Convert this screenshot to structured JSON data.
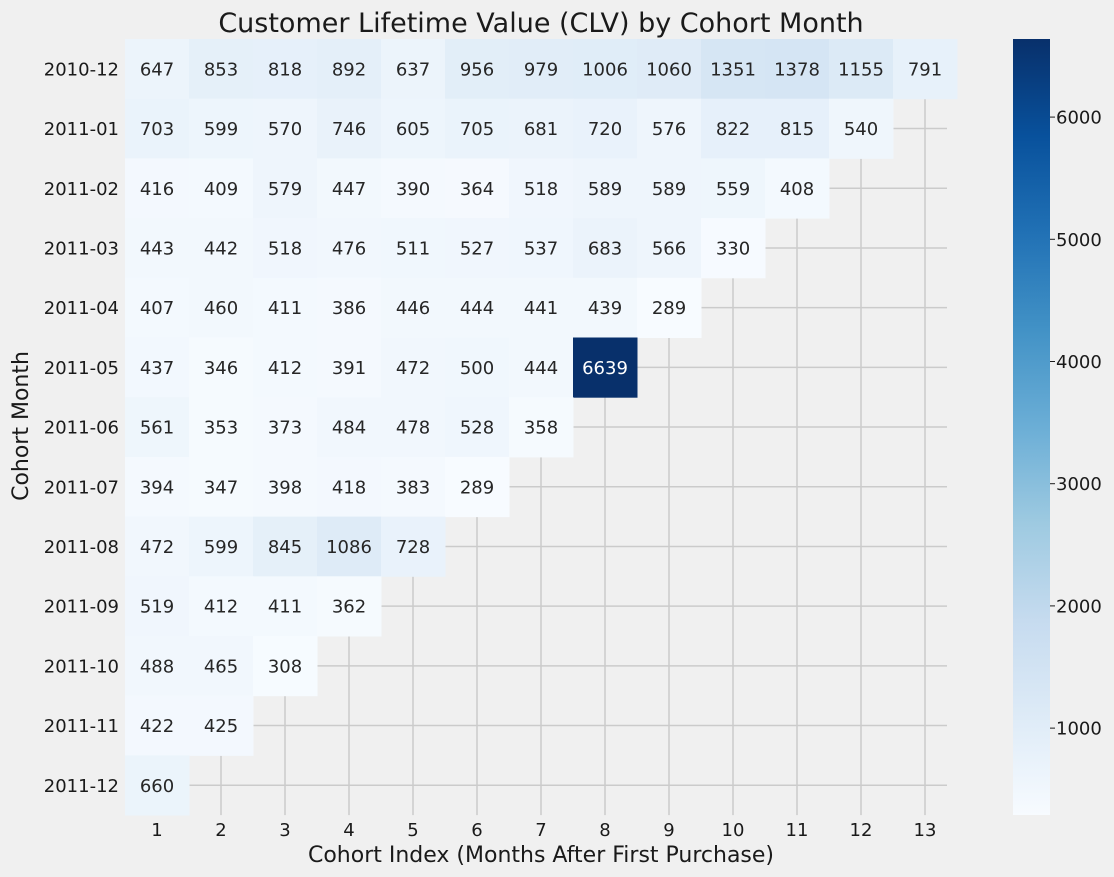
{
  "chart_data": {
    "type": "heatmap",
    "title": "Customer Lifetime Value (CLV) by Cohort Month",
    "xlabel": "Cohort Index (Months After First Purchase)",
    "ylabel": "Cohort Month",
    "x_categories": [
      "1",
      "2",
      "3",
      "4",
      "5",
      "6",
      "7",
      "8",
      "9",
      "10",
      "11",
      "12",
      "13"
    ],
    "y_categories": [
      "2010-12",
      "2011-01",
      "2011-02",
      "2011-03",
      "2011-04",
      "2011-05",
      "2011-06",
      "2011-07",
      "2011-08",
      "2011-09",
      "2011-10",
      "2011-11",
      "2011-12"
    ],
    "values": [
      [
        647,
        853,
        818,
        892,
        637,
        956,
        979,
        1006,
        1060,
        1351,
        1378,
        1155,
        791
      ],
      [
        703,
        599,
        570,
        746,
        605,
        705,
        681,
        720,
        576,
        822,
        815,
        540,
        null
      ],
      [
        416,
        409,
        579,
        447,
        390,
        364,
        518,
        589,
        589,
        559,
        408,
        null,
        null
      ],
      [
        443,
        442,
        518,
        476,
        511,
        527,
        537,
        683,
        566,
        330,
        null,
        null,
        null
      ],
      [
        407,
        460,
        411,
        386,
        446,
        444,
        441,
        439,
        289,
        null,
        null,
        null,
        null
      ],
      [
        437,
        346,
        412,
        391,
        472,
        500,
        444,
        6639,
        null,
        null,
        null,
        null,
        null
      ],
      [
        561,
        353,
        373,
        484,
        478,
        528,
        358,
        null,
        null,
        null,
        null,
        null,
        null
      ],
      [
        394,
        347,
        398,
        418,
        383,
        289,
        null,
        null,
        null,
        null,
        null,
        null,
        null
      ],
      [
        472,
        599,
        845,
        1086,
        728,
        null,
        null,
        null,
        null,
        null,
        null,
        null,
        null
      ],
      [
        519,
        412,
        411,
        362,
        null,
        null,
        null,
        null,
        null,
        null,
        null,
        null,
        null
      ],
      [
        488,
        465,
        308,
        null,
        null,
        null,
        null,
        null,
        null,
        null,
        null,
        null,
        null
      ],
      [
        422,
        425,
        null,
        null,
        null,
        null,
        null,
        null,
        null,
        null,
        null,
        null,
        null
      ],
      [
        660,
        null,
        null,
        null,
        null,
        null,
        null,
        null,
        null,
        null,
        null,
        null,
        null
      ]
    ],
    "colormap": "Blues",
    "value_range": [
      289,
      6639
    ],
    "colorbar_ticks": [
      1000,
      2000,
      3000,
      4000,
      5000,
      6000
    ],
    "grid": true
  }
}
